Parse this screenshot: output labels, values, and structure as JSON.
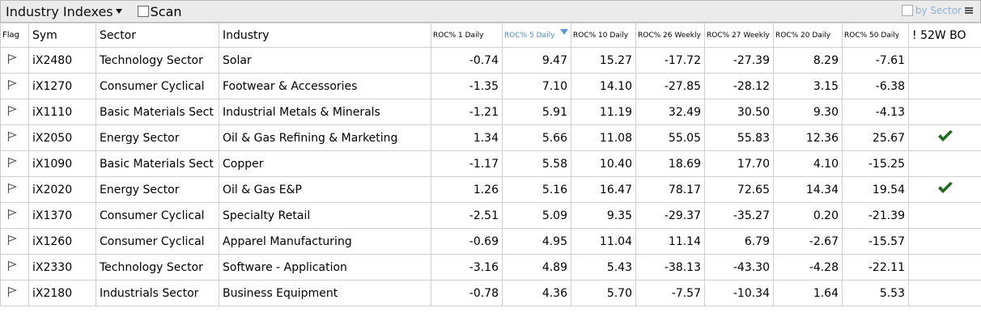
{
  "header": {
    "title": "Industry Indexes",
    "scan": "Scan",
    "by_sector": "by Sector"
  },
  "table": {
    "columns": [
      "Flag",
      "Sym",
      "Sector",
      "Industry",
      "ROC% 1 Daily",
      "ROC% 5 Daily",
      "ROC% 10 Daily",
      "ROC% 26 Weekly",
      "ROC% 27 Weekly",
      "ROC% 20 Daily",
      "ROC% 50 Daily",
      "! 52W BO"
    ],
    "sorted_column": 5,
    "rows": [
      [
        "iX2480",
        "Technology Sector",
        "Solar",
        "-0.74",
        "9.47",
        "15.27",
        "-17.72",
        "-27.39",
        "8.29",
        "-7.61",
        false
      ],
      [
        "iX1270",
        "Consumer Cyclical",
        "Footwear & Accessories",
        "-1.35",
        "7.10",
        "14.10",
        "-27.85",
        "-28.12",
        "3.15",
        "-6.38",
        false
      ],
      [
        "iX1110",
        "Basic Materials Sect",
        "Industrial Metals & Minerals",
        "-1.21",
        "5.91",
        "11.19",
        "32.49",
        "30.50",
        "9.30",
        "-4.13",
        false
      ],
      [
        "iX2050",
        "Energy Sector",
        "Oil & Gas Refining & Marketing",
        "1.34",
        "5.66",
        "11.08",
        "55.05",
        "55.83",
        "12.36",
        "25.67",
        true
      ],
      [
        "iX1090",
        "Basic Materials Sect",
        "Copper",
        "-1.17",
        "5.58",
        "10.40",
        "18.69",
        "17.70",
        "4.10",
        "-15.25",
        false
      ],
      [
        "iX2020",
        "Energy Sector",
        "Oil & Gas E&P",
        "1.26",
        "5.16",
        "16.47",
        "78.17",
        "72.65",
        "14.34",
        "19.54",
        true
      ],
      [
        "iX1370",
        "Consumer Cyclical",
        "Specialty Retail",
        "-2.51",
        "5.09",
        "9.35",
        "-29.37",
        "-35.27",
        "0.20",
        "-21.39",
        false
      ],
      [
        "iX1260",
        "Consumer Cyclical",
        "Apparel Manufacturing",
        "-0.69",
        "4.95",
        "11.04",
        "11.14",
        "6.79",
        "-2.67",
        "-15.57",
        false
      ],
      [
        "iX2330",
        "Technology Sector",
        "Software - Application",
        "-3.16",
        "4.89",
        "5.43",
        "-38.13",
        "-43.30",
        "-4.28",
        "-22.11",
        false
      ],
      [
        "iX2180",
        "Industrials Sector",
        "Business Equipment",
        "-0.78",
        "4.36",
        "5.70",
        "-7.57",
        "-10.34",
        "1.64",
        "5.53",
        false
      ]
    ]
  }
}
